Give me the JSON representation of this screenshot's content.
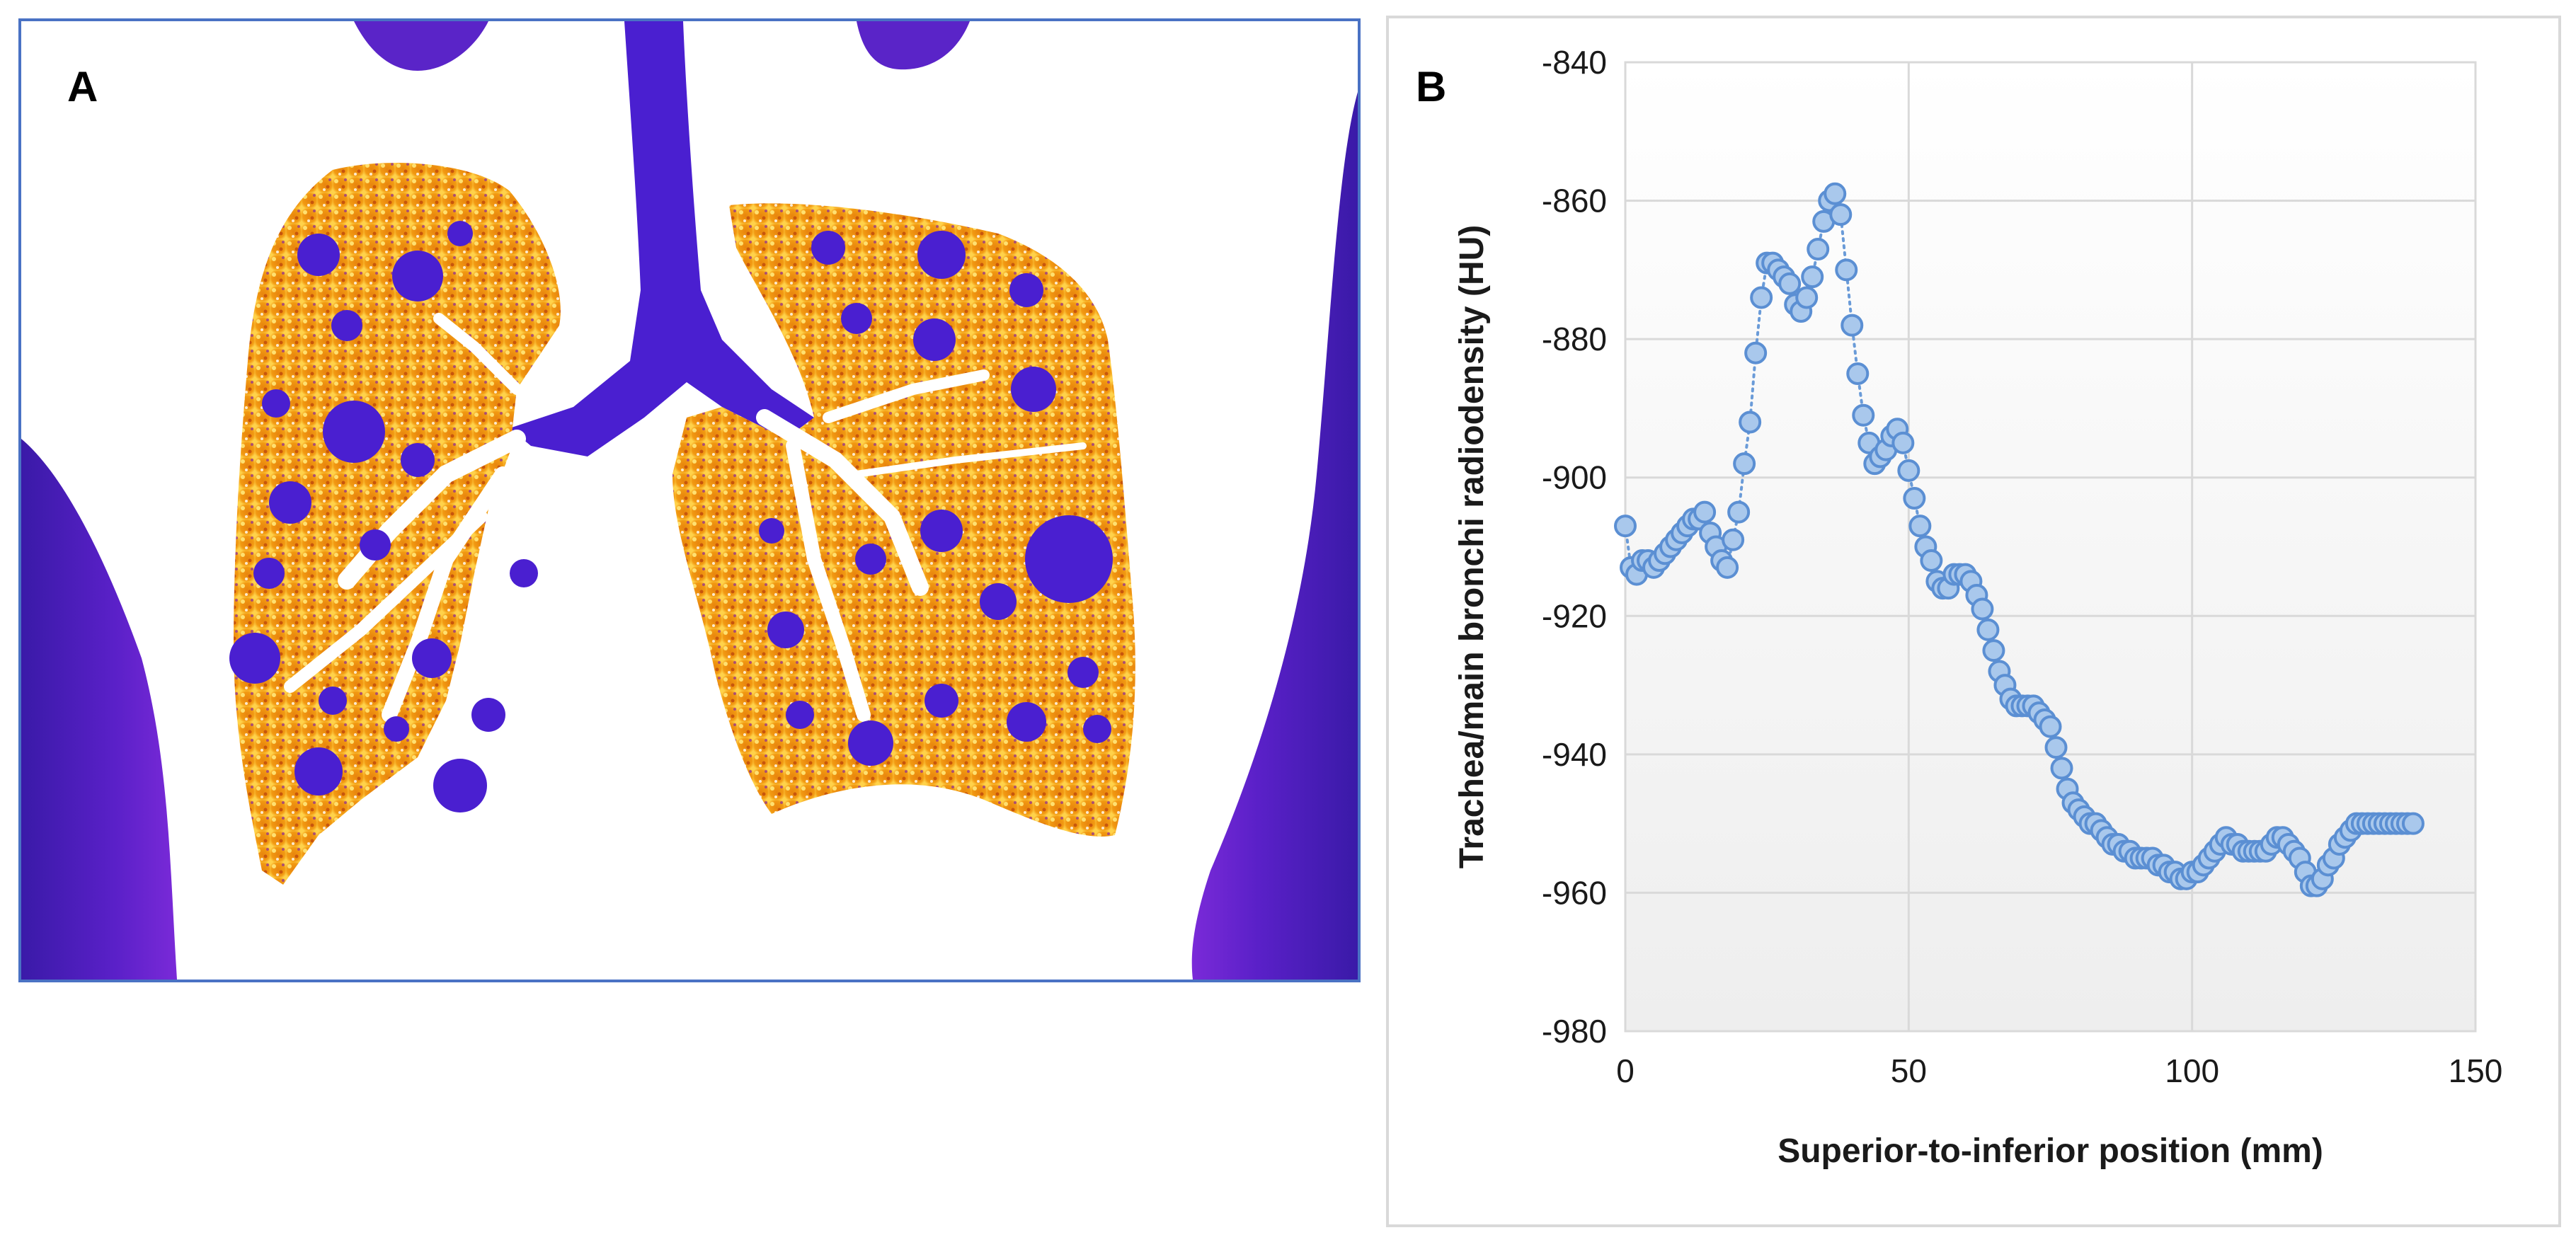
{
  "figure": {
    "panel_a_label": "A",
    "panel_b_label": "B"
  },
  "colors": {
    "panel_a_border": "#4a72c4",
    "lung_orange": "#f29a12",
    "lung_yellow": "#ffe070",
    "cyst_purple": "#4a1fd0",
    "tissue_purple": "#3a1aa8",
    "marker_fill": "#a9c8ec",
    "marker_stroke": "#5b8fd3",
    "line_dotted": "#6a9bd8"
  },
  "chart_data": {
    "type": "scatter",
    "title": "",
    "xlabel": "Superior-to-inferior position (mm)",
    "ylabel": "Trachea/main bronchi radiodensity (HU)",
    "xlim": [
      0,
      150
    ],
    "ylim": [
      -980,
      -840
    ],
    "xticks": [
      0,
      50,
      100,
      150
    ],
    "yticks": [
      -840,
      -860,
      -880,
      -900,
      -920,
      -940,
      -960,
      -980
    ],
    "xtick_labels": [
      "0",
      "50",
      "100",
      "150"
    ],
    "ytick_labels": [
      "-840",
      "-860",
      "-880",
      "-900",
      "-920",
      "-940",
      "-960",
      "-980"
    ],
    "grid": true,
    "series": [
      {
        "name": "radiodensity",
        "style": "circle markers with dotted connecting line",
        "x": [
          0,
          1,
          2,
          3,
          4,
          5,
          6,
          7,
          8,
          9,
          10,
          11,
          12,
          13,
          14,
          15,
          16,
          17,
          18,
          19,
          20,
          21,
          22,
          23,
          24,
          25,
          26,
          27,
          28,
          29,
          30,
          31,
          32,
          33,
          34,
          35,
          36,
          37,
          38,
          39,
          40,
          41,
          42,
          43,
          44,
          45,
          46,
          47,
          48,
          49,
          50,
          51,
          52,
          53,
          54,
          55,
          56,
          57,
          58,
          59,
          60,
          61,
          62,
          63,
          64,
          65,
          66,
          67,
          68,
          69,
          70,
          71,
          72,
          73,
          74,
          75,
          76,
          77,
          78,
          79,
          80,
          81,
          82,
          83,
          84,
          85,
          86,
          87,
          88,
          89,
          90,
          91,
          92,
          93,
          94,
          95,
          96,
          97,
          98,
          99,
          100,
          101,
          102,
          103,
          104,
          105,
          106,
          107,
          108,
          109,
          110,
          111,
          112,
          113,
          114,
          115,
          116,
          117,
          118,
          119,
          120,
          121,
          122,
          123,
          124,
          125,
          126,
          127,
          128,
          129,
          130,
          131,
          132,
          133,
          134,
          135,
          136,
          137,
          138,
          139
        ],
        "y": [
          -907,
          -913,
          -914,
          -912,
          -912,
          -913,
          -912,
          -911,
          -910,
          -909,
          -908,
          -907,
          -906,
          -906,
          -905,
          -908,
          -910,
          -912,
          -913,
          -909,
          -905,
          -898,
          -892,
          -882,
          -874,
          -869,
          -869,
          -870,
          -871,
          -872,
          -875,
          -876,
          -874,
          -871,
          -867,
          -863,
          -860,
          -859,
          -862,
          -870,
          -878,
          -885,
          -891,
          -895,
          -898,
          -897,
          -896,
          -894,
          -893,
          -895,
          -899,
          -903,
          -907,
          -910,
          -912,
          -915,
          -916,
          -916,
          -914,
          -914,
          -914,
          -915,
          -917,
          -919,
          -922,
          -925,
          -928,
          -930,
          -932,
          -933,
          -933,
          -933,
          -933,
          -934,
          -935,
          -936,
          -939,
          -942,
          -945,
          -947,
          -948,
          -949,
          -950,
          -950,
          -951,
          -952,
          -953,
          -953,
          -954,
          -954,
          -955,
          -955,
          -955,
          -955,
          -956,
          -956,
          -957,
          -957,
          -958,
          -958,
          -957,
          -957,
          -956,
          -955,
          -954,
          -953,
          -952,
          -953,
          -953,
          -954,
          -954,
          -954,
          -954,
          -954,
          -953,
          -952,
          -952,
          -953,
          -954,
          -955,
          -957,
          -959,
          -959,
          -958,
          -956,
          -955,
          -953,
          -952,
          -951,
          -950,
          -950,
          -950,
          -950,
          -950,
          -950,
          -950,
          -950,
          -950,
          -950,
          -950
        ]
      }
    ]
  }
}
